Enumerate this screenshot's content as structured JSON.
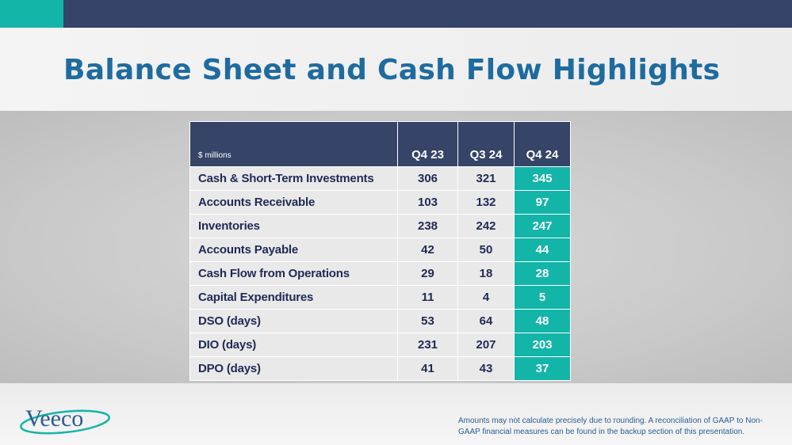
{
  "title": "Balance Sheet and Cash Flow Highlights",
  "colors": {
    "navy": "#354467",
    "teal": "#13b5a8",
    "title_blue": "#1e6b9f",
    "row_text": "#1f2a56"
  },
  "table": {
    "units_label": "$ millions",
    "columns": [
      "Q4 23",
      "Q3 24",
      "Q4 24"
    ],
    "rows": [
      {
        "label": "Cash & Short-Term Investments",
        "values": [
          "306",
          "321",
          "345"
        ]
      },
      {
        "label": "Accounts Receivable",
        "values": [
          "103",
          "132",
          "97"
        ]
      },
      {
        "label": "Inventories",
        "values": [
          "238",
          "242",
          "247"
        ]
      },
      {
        "label": "Accounts Payable",
        "values": [
          "42",
          "50",
          "44"
        ]
      },
      {
        "label": "Cash Flow from Operations",
        "values": [
          "29",
          "18",
          "28"
        ]
      },
      {
        "label": "Capital Expenditures",
        "values": [
          "11",
          "4",
          "5"
        ]
      },
      {
        "label": "DSO (days)",
        "values": [
          "53",
          "64",
          "48"
        ]
      },
      {
        "label": "DIO (days)",
        "values": [
          "231",
          "207",
          "203"
        ]
      },
      {
        "label": "DPO (days)",
        "values": [
          "41",
          "43",
          "37"
        ]
      }
    ]
  },
  "logo": {
    "text": "Veeco"
  },
  "footnote": "Amounts may not calculate precisely due to rounding.  A reconciliation of GAAP to Non-GAAP financial measures can be found in the backup section of this presentation."
}
